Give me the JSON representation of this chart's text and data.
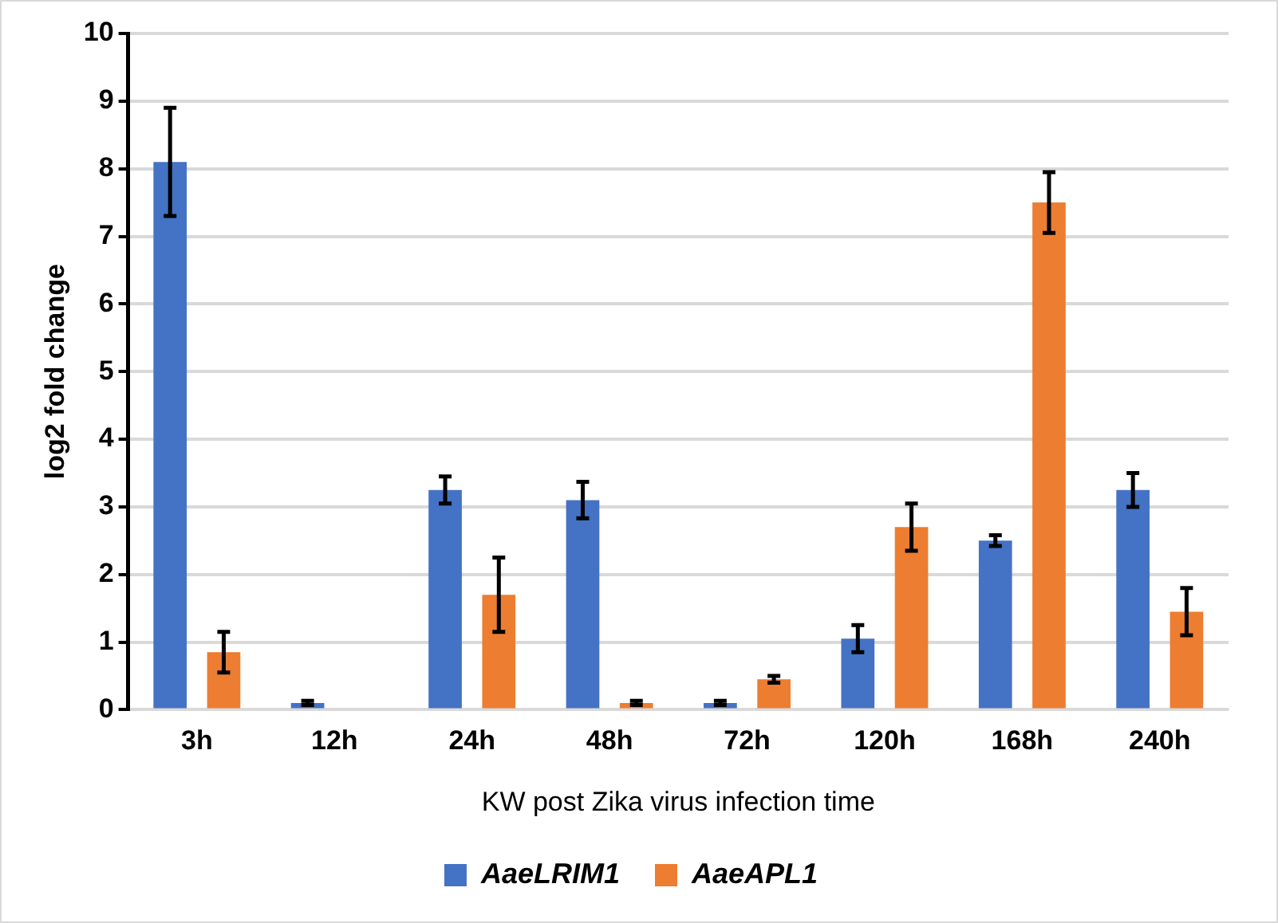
{
  "chart_data": {
    "type": "bar",
    "xlabel": "KW post Zika virus infection time",
    "ylabel": "log2 fold change",
    "categories": [
      "3h",
      "12h",
      "24h",
      "48h",
      "72h",
      "120h",
      "168h",
      "240h"
    ],
    "series": [
      {
        "name": "AaeLRIM1",
        "color": "#4472c4",
        "values": [
          8.1,
          0.1,
          3.25,
          3.1,
          0.1,
          1.05,
          2.5,
          3.25
        ],
        "errors": [
          0.8,
          0.03,
          0.2,
          0.27,
          0.03,
          0.2,
          0.08,
          0.25
        ]
      },
      {
        "name": "AaeAPL1",
        "color": "#ed7d31",
        "values": [
          0.85,
          null,
          1.7,
          0.1,
          0.45,
          2.7,
          7.5,
          1.45
        ],
        "errors": [
          0.3,
          null,
          0.55,
          0.03,
          0.05,
          0.35,
          0.45,
          0.35
        ]
      }
    ],
    "ylim": [
      0,
      10
    ],
    "yticks": [
      0,
      1,
      2,
      3,
      4,
      5,
      6,
      7,
      8,
      9,
      10
    ],
    "grid": "y",
    "legend": "bottom"
  }
}
